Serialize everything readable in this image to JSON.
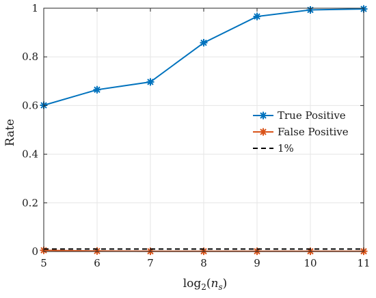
{
  "chart_data": {
    "type": "line",
    "xlabel": "log2(ns)",
    "ylabel": "Rate",
    "x": [
      5,
      6,
      7,
      8,
      9,
      10,
      11
    ],
    "xlim": [
      5,
      11
    ],
    "ylim": [
      0,
      1
    ],
    "xticks": [
      5,
      6,
      7,
      8,
      9,
      10,
      11
    ],
    "yticks": [
      0,
      0.2,
      0.4,
      0.6,
      0.8,
      1
    ],
    "grid": true,
    "legend_position": "right",
    "series": [
      {
        "name": "True Positive",
        "values": [
          0.601,
          0.665,
          0.697,
          0.858,
          0.966,
          0.993,
          0.997
        ],
        "color": "#0072BD",
        "marker": "asterisk",
        "line": "solid"
      },
      {
        "name": "False Positive",
        "values": [
          0.005,
          0.002,
          0.001,
          0.001,
          0.001,
          0.001,
          0.001
        ],
        "color": "#D95319",
        "marker": "asterisk",
        "line": "solid"
      },
      {
        "name": "1%",
        "values": [
          0.01,
          0.01,
          0.01,
          0.01,
          0.01,
          0.01,
          0.01
        ],
        "color": "#000000",
        "marker": "none",
        "line": "dashed"
      }
    ]
  }
}
